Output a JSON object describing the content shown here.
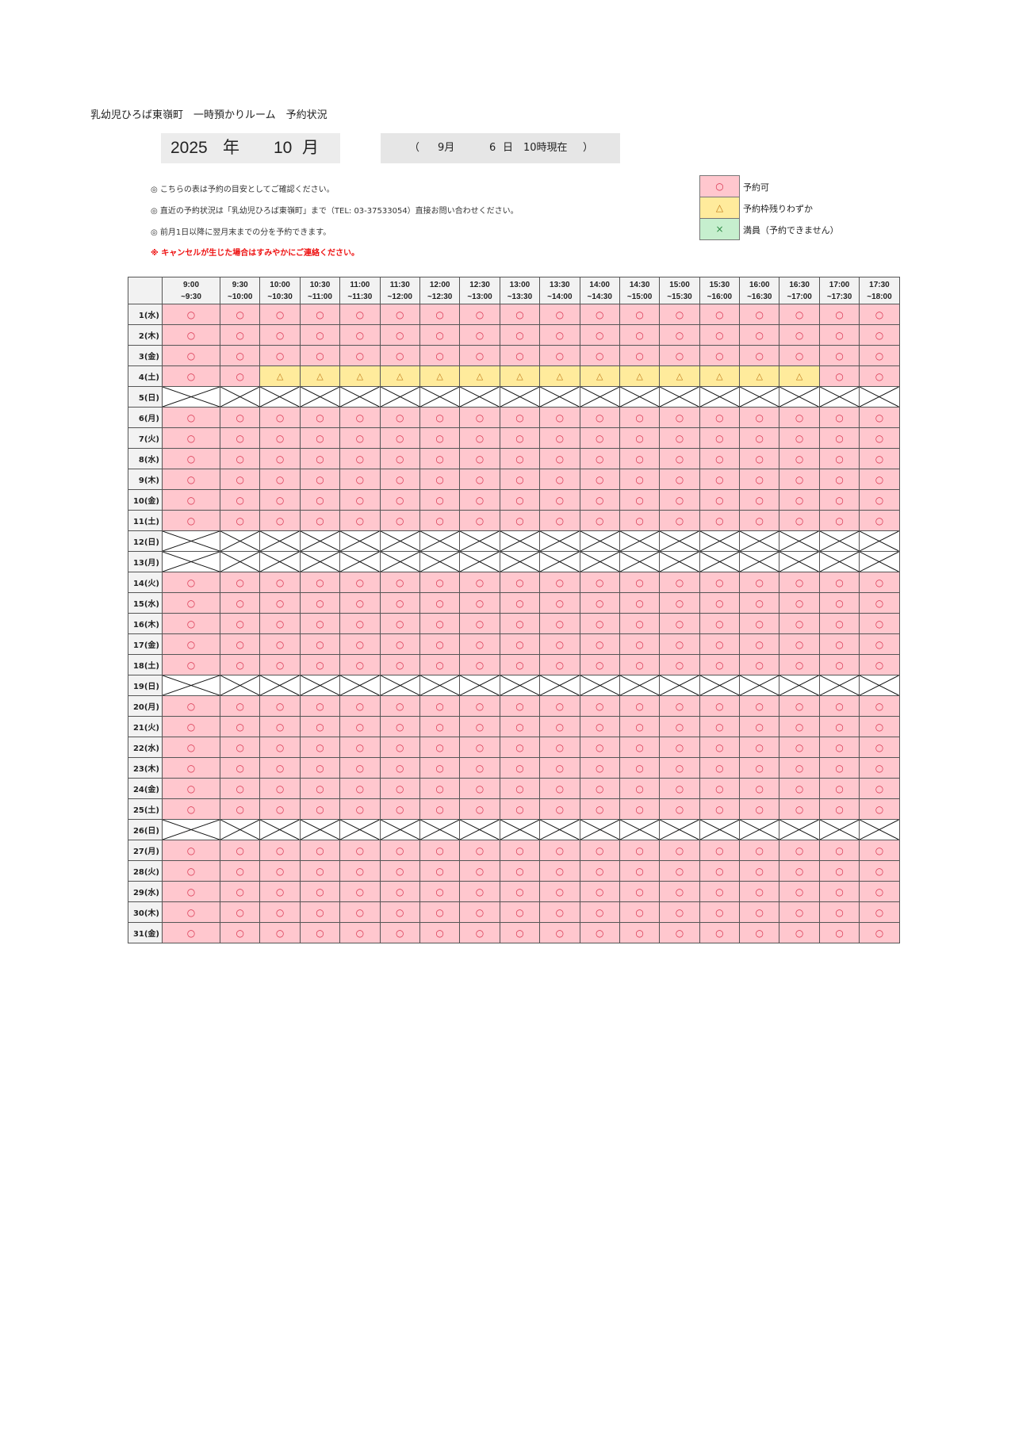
{
  "title": "乳幼児ひろば東嶺町　一時預かりルーム　予約状況",
  "period": {
    "year": "2025",
    "year_unit": "年",
    "month": "10",
    "month_unit": "月"
  },
  "as_of": {
    "open": "（",
    "month": "9月",
    "day": "6",
    "day_unit": "日",
    "time": "10時現在",
    "close": "）"
  },
  "notes": [
    "◎  こちらの表は予約の目安としてご確認ください。",
    "◎  直近の予約状況は「乳幼児ひろば東嶺町」まで（TEL: 03-37533054）直接お問い合わせください。",
    "◎  前月1日以降に翌月末までの分を予約できます。"
  ],
  "warning": "※  キャンセルが生じた場合はすみやかにご連絡ください。",
  "legend": [
    {
      "symbol": "○",
      "label": "予約可",
      "color": "#ffc7ce"
    },
    {
      "symbol": "△",
      "label": "予約枠残りわずか",
      "color": "#ffeb9c"
    },
    {
      "symbol": "×",
      "label": "満員（予約できません）",
      "color": "#c6efce"
    }
  ],
  "time_slots": [
    [
      "9:00",
      "~9:30"
    ],
    [
      "9:30",
      "~10:00"
    ],
    [
      "10:00",
      "~10:30"
    ],
    [
      "10:30",
      "~11:00"
    ],
    [
      "11:00",
      "~11:30"
    ],
    [
      "11:30",
      "~12:00"
    ],
    [
      "12:00",
      "~12:30"
    ],
    [
      "12:30",
      "~13:00"
    ],
    [
      "13:00",
      "~13:30"
    ],
    [
      "13:30",
      "~14:00"
    ],
    [
      "14:00",
      "~14:30"
    ],
    [
      "14:30",
      "~15:00"
    ],
    [
      "15:00",
      "~15:30"
    ],
    [
      "15:30",
      "~16:00"
    ],
    [
      "16:00",
      "~16:30"
    ],
    [
      "16:30",
      "~17:00"
    ],
    [
      "17:00",
      "~17:30"
    ],
    [
      "17:30",
      "~18:00"
    ]
  ],
  "rows": [
    {
      "day": "1(水)",
      "slots": "oooooooooooooooooo"
    },
    {
      "day": "2(木)",
      "slots": "oooooooooooooooooo"
    },
    {
      "day": "3(金)",
      "slots": "oooooooooooooooooo"
    },
    {
      "day": "4(土)",
      "slots": "oottttttttttttttoo"
    },
    {
      "day": "5(日)",
      "closed": true
    },
    {
      "day": "6(月)",
      "slots": "oooooooooooooooooo"
    },
    {
      "day": "7(火)",
      "slots": "oooooooooooooooooo"
    },
    {
      "day": "8(水)",
      "slots": "oooooooooooooooooo"
    },
    {
      "day": "9(木)",
      "slots": "oooooooooooooooooo"
    },
    {
      "day": "10(金)",
      "slots": "oooooooooooooooooo"
    },
    {
      "day": "11(土)",
      "slots": "oooooooooooooooooo"
    },
    {
      "day": "12(日)",
      "closed": true
    },
    {
      "day": "13(月)",
      "closed": true
    },
    {
      "day": "14(火)",
      "slots": "oooooooooooooooooo"
    },
    {
      "day": "15(水)",
      "slots": "oooooooooooooooooo"
    },
    {
      "day": "16(木)",
      "slots": "oooooooooooooooooo"
    },
    {
      "day": "17(金)",
      "slots": "oooooooooooooooooo"
    },
    {
      "day": "18(土)",
      "slots": "oooooooooooooooooo"
    },
    {
      "day": "19(日)",
      "closed": true
    },
    {
      "day": "20(月)",
      "slots": "oooooooooooooooooo"
    },
    {
      "day": "21(火)",
      "slots": "oooooooooooooooooo"
    },
    {
      "day": "22(水)",
      "slots": "oooooooooooooooooo"
    },
    {
      "day": "23(木)",
      "slots": "oooooooooooooooooo"
    },
    {
      "day": "24(金)",
      "slots": "oooooooooooooooooo"
    },
    {
      "day": "25(土)",
      "slots": "oooooooooooooooooo"
    },
    {
      "day": "26(日)",
      "closed": true
    },
    {
      "day": "27(月)",
      "slots": "oooooooooooooooooo"
    },
    {
      "day": "28(火)",
      "slots": "oooooooooooooooooo"
    },
    {
      "day": "29(水)",
      "slots": "oooooooooooooooooo"
    },
    {
      "day": "30(木)",
      "slots": "oooooooooooooooooo"
    },
    {
      "day": "31(金)",
      "slots": "oooooooooooooooooo"
    }
  ]
}
